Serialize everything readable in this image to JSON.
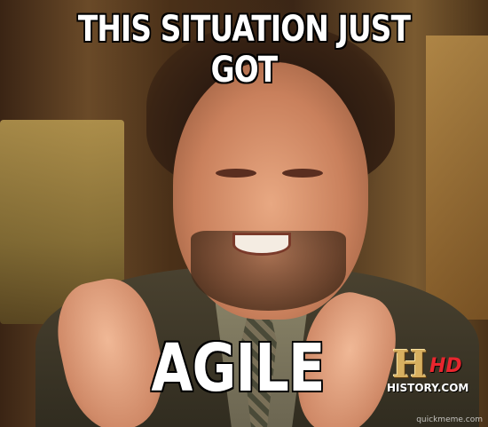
{
  "meme": {
    "top_text": "THIS SITUATION JUST GOT",
    "bottom_text": "AGILE"
  },
  "logo": {
    "letter": "H",
    "hd": "HD",
    "site": "HISTORY.COM"
  },
  "watermark": "quickmeme.com",
  "colors": {
    "caption": "#ffffff",
    "caption_outline": "#000000",
    "logo_gold": "#d8b060",
    "logo_hd_red": "#e8262e"
  }
}
